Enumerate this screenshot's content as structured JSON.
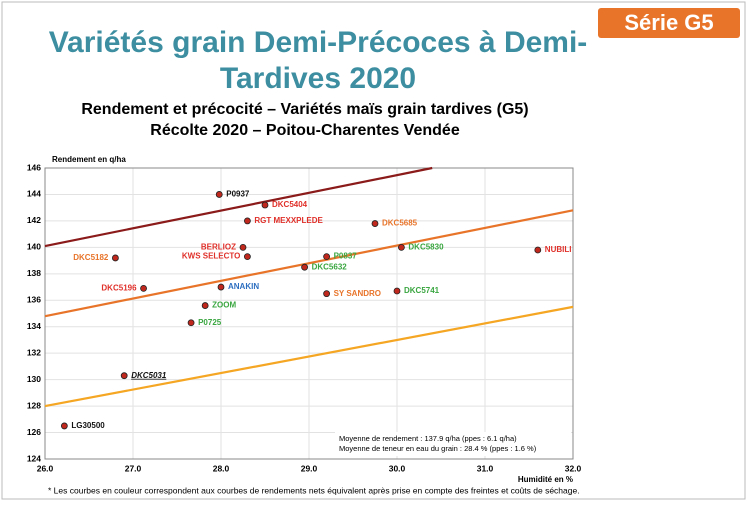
{
  "badge": "Série G5",
  "slide_title": [
    "Variétés grain Demi-Précoces à Demi-",
    "Tardives 2020"
  ],
  "footnote": "* Les courbes en couleur correspondent aux courbes de rendements nets équivalent après prise en compte des freintes et coûts de séchage.",
  "chart_data": {
    "type": "scatter",
    "title": [
      "Rendement et précocité – Variétés maïs grain tardives (G5)",
      "Récolte 2020 – Poitou-Charentes Vendée"
    ],
    "ylabel": "Rendement en q/ha",
    "xlabel": "Humidité en %",
    "point_labels": [
      "P0937",
      "DKC5404",
      "RGT MEXXPLEDE",
      "DKC5685",
      "BERLIOZ",
      "KWS SELECTO",
      "P0837",
      "DKC5830",
      "NUBILI",
      "DKC5182",
      "DKC5632",
      "DKC5196",
      "ANAKIN",
      "ZOOM",
      "SY SANDRO",
      "DKC5741",
      "P0725",
      "DKC5031",
      "LG30500"
    ],
    "label_colors": [
      "#111111",
      "#e0302a",
      "#e0302a",
      "#e8742a",
      "#e0302a",
      "#e0302a",
      "#3aa640",
      "#3aa640",
      "#e0302a",
      "#e8742a",
      "#3aa640",
      "#e0302a",
      "#2e6fc0",
      "#3aa640",
      "#e8742a",
      "#3aa640",
      "#3aa640",
      "#111111",
      "#111111"
    ],
    "x": [
      27.98,
      28.5,
      28.3,
      29.75,
      28.25,
      28.3,
      29.2,
      30.05,
      31.6,
      26.8,
      28.95,
      27.12,
      28.0,
      27.82,
      29.2,
      30.0,
      27.66,
      26.9,
      26.22
    ],
    "values": [
      144.0,
      143.2,
      142.0,
      141.8,
      140.0,
      139.3,
      139.3,
      140.0,
      139.8,
      139.2,
      138.5,
      136.9,
      137.0,
      135.6,
      136.5,
      136.7,
      134.3,
      130.3,
      126.5
    ],
    "point_color": "#c0281e",
    "curves": [
      {
        "color": "#8b1a1a",
        "x": [
          26.0,
          30.4
        ],
        "values": [
          140.1,
          146.0
        ]
      },
      {
        "color": "#e8742a",
        "x": [
          26.0,
          32.0
        ],
        "values": [
          134.8,
          142.8
        ]
      },
      {
        "color": "#f5a623",
        "x": [
          26.0,
          32.0
        ],
        "values": [
          128.0,
          135.5
        ]
      }
    ],
    "annotation": [
      "Moyenne de rendement : 137.9 q/ha  (ppes : 6.1 q/ha)",
      "Moyenne de teneur en eau du grain : 28.4 % (ppes : 1.6 %)"
    ],
    "xlim": [
      26.0,
      32.0
    ],
    "xticks": [
      {
        "value": 26,
        "label": "26.0"
      },
      {
        "value": 27,
        "label": "27.0"
      },
      {
        "value": 28,
        "label": "28.0"
      },
      {
        "value": 29,
        "label": "29.0"
      },
      {
        "value": 30,
        "label": "30.0"
      },
      {
        "value": 31,
        "label": "31.0"
      },
      {
        "value": 32,
        "label": "32.0"
      }
    ],
    "ylim": [
      124,
      146
    ],
    "yticks": [
      124,
      126,
      128,
      130,
      132,
      134,
      136,
      138,
      140,
      142,
      144,
      146
    ],
    "grid": true
  }
}
